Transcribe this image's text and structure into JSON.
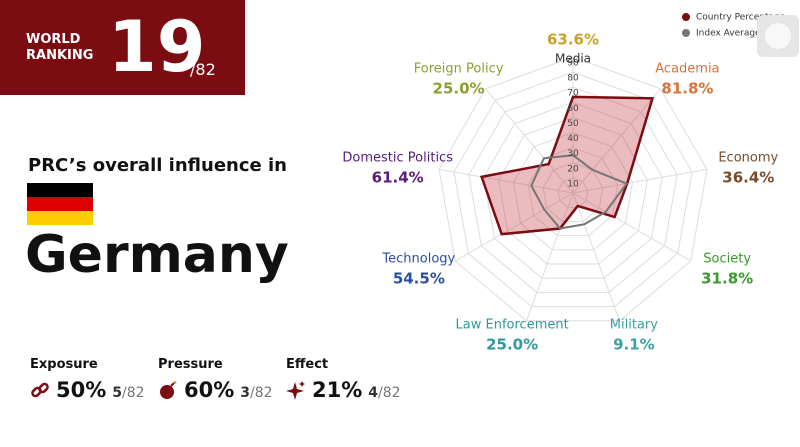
{
  "ranking": {
    "label": "WORLD RANKING",
    "rank": "19",
    "total": "/82"
  },
  "headline": "PRC’s overall influence in",
  "country": "Germany",
  "metrics": [
    {
      "name": "Exposure",
      "percent": "50%",
      "rank": "5",
      "total": "/82"
    },
    {
      "name": "Pressure",
      "percent": "60%",
      "rank": "3",
      "total": "/82"
    },
    {
      "name": "Effect",
      "percent": "21%",
      "rank": "4",
      "total": "/82"
    }
  ],
  "chart_data": {
    "type": "radar",
    "categories": [
      "Media",
      "Academia",
      "Economy",
      "Society",
      "Military",
      "Law Enforcement",
      "Technology",
      "Domestic Politics",
      "Foreign Policy"
    ],
    "category_colors": [
      "#c9a227",
      "#d9733a",
      "#7a4a2a",
      "#3a9a2a",
      "#3aa3a3",
      "#2e9a9a",
      "#2a4fa0",
      "#5a1a7a",
      "#8aa030"
    ],
    "series": [
      {
        "name": "Country Percentage",
        "color": "#7a0c12",
        "values": [
          63.6,
          81.8,
          36.4,
          31.8,
          9.1,
          25.0,
          54.5,
          61.4,
          25.0
        ],
        "value_labels": [
          "63.6%",
          "81.8%",
          "36.4%",
          "31.8%",
          "9.1%",
          "25.0%",
          "54.5%",
          "61.4%",
          "25.0%"
        ]
      },
      {
        "name": "Index Average",
        "color": "#777777",
        "values": [
          25,
          20,
          36,
          25,
          22,
          25,
          22,
          28,
          30
        ]
      }
    ],
    "ylim": [
      0,
      90
    ],
    "yticks": [
      10,
      20,
      30,
      40,
      50,
      60,
      70,
      80,
      90
    ],
    "grid": true,
    "legend": "top-right"
  }
}
